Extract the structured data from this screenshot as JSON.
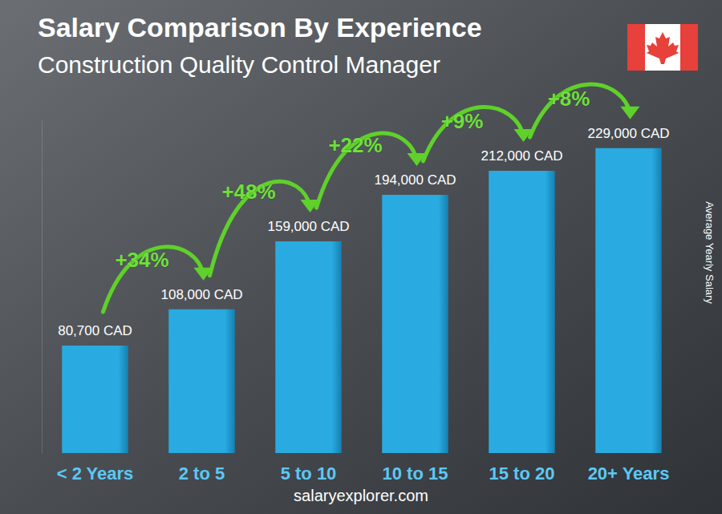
{
  "chart_data": {
    "type": "bar",
    "title": "Salary Comparison By Experience",
    "subtitle": "Construction Quality Control Manager",
    "categories": [
      "< 2 Years",
      "2 to 5",
      "5 to 10",
      "10 to 15",
      "15 to 20",
      "20+ Years"
    ],
    "values": [
      80700,
      108000,
      159000,
      194000,
      212000,
      229000
    ],
    "value_labels": [
      "80,700 CAD",
      "108,000 CAD",
      "159,000 CAD",
      "194,000 CAD",
      "212,000 CAD",
      "229,000 CAD"
    ],
    "annotations": [
      "+34%",
      "+48%",
      "+22%",
      "+9%",
      "+8%"
    ],
    "ylabel": "Average Yearly Salary",
    "source": "salaryexplorer.com",
    "color": "#29abe2",
    "ylim": [
      0,
      250000
    ],
    "grid": false,
    "data_labels": true,
    "tick_labels": "x"
  }
}
